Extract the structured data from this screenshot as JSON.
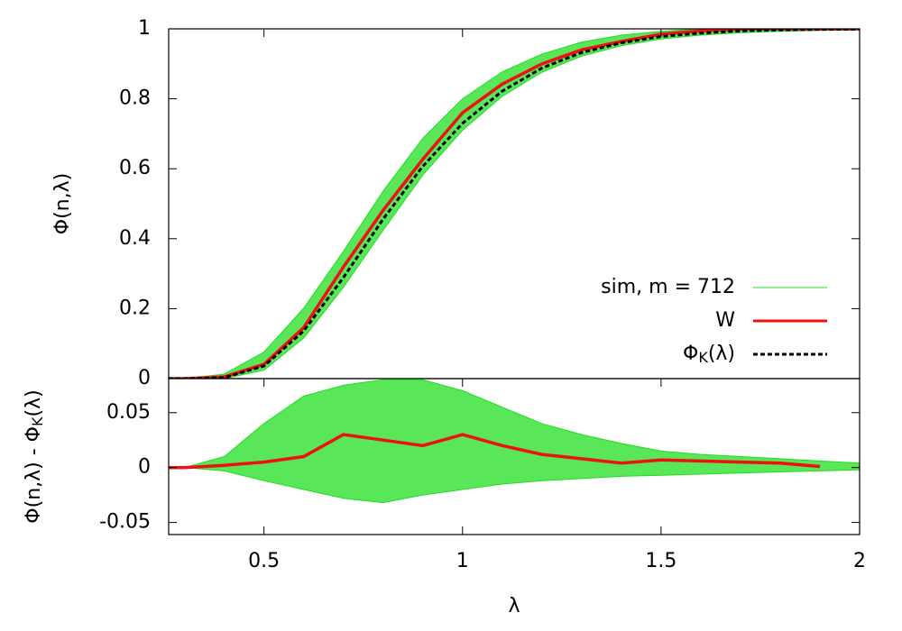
{
  "chart_data": [
    {
      "type": "line",
      "ylabel": "Φ(n,λ)",
      "x": [
        0.26,
        0.3,
        0.4,
        0.5,
        0.6,
        0.7,
        0.8,
        0.9,
        1.0,
        1.1,
        1.2,
        1.3,
        1.4,
        1.5,
        1.6,
        1.7,
        1.8,
        1.9,
        2.0
      ],
      "xlim": [
        0.26,
        2
      ],
      "ylim": [
        0,
        1
      ],
      "yticks": [
        0,
        0.2,
        0.4,
        0.6,
        0.8,
        1
      ],
      "legend": "lower right",
      "series": [
        {
          "name": "sim, m = 712",
          "color": "#22dd22",
          "lower": [
            0,
            0,
            0,
            0.024,
            0.116,
            0.261,
            0.424,
            0.582,
            0.71,
            0.807,
            0.876,
            0.922,
            0.952,
            0.971,
            0.982,
            0.989,
            0.993,
            0.9955,
            0.997
          ],
          "upper": [
            0,
            0,
            0.013,
            0.076,
            0.201,
            0.364,
            0.536,
            0.687,
            0.8,
            0.877,
            0.928,
            0.962,
            0.982,
            0.993,
            1,
            1,
            1,
            1,
            1
          ]
        },
        {
          "name": "W",
          "color": "#ee1111",
          "values": [
            0,
            0,
            0.005,
            0.041,
            0.146,
            0.319,
            0.481,
            0.627,
            0.76,
            0.842,
            0.9,
            0.94,
            0.964,
            0.985,
            0.994,
            0.999,
            1,
            0.9995,
            1
          ]
        },
        {
          "name": [
            "Φ",
            "K",
            "(λ)"
          ],
          "color": "#000000",
          "dash": true,
          "values": [
            0,
            0,
            0.0028,
            0.036,
            0.136,
            0.289,
            0.456,
            0.607,
            0.73,
            0.822,
            0.888,
            0.932,
            0.96,
            0.978,
            0.988,
            0.994,
            0.997,
            0.9985,
            0.9993
          ]
        }
      ]
    },
    {
      "type": "line",
      "xlabel": "λ",
      "ylabel": [
        "Φ(n,λ) - Φ",
        "K",
        "(λ)"
      ],
      "x": [
        0.26,
        0.3,
        0.4,
        0.5,
        0.6,
        0.7,
        0.8,
        0.9,
        1.0,
        1.1,
        1.2,
        1.3,
        1.4,
        1.5,
        1.6,
        1.7,
        1.8,
        1.9,
        2.0
      ],
      "xlim": [
        0.26,
        2
      ],
      "xticks": [
        0.5,
        1,
        1.5,
        2
      ],
      "ylim": [
        -0.061,
        0.081
      ],
      "yticks": [
        -0.05,
        0,
        0.05
      ],
      "series": [
        {
          "color": "#22dd22",
          "lower": [
            0,
            0,
            -0.003,
            -0.012,
            -0.02,
            -0.028,
            -0.032,
            -0.025,
            -0.02,
            -0.015,
            -0.012,
            -0.01,
            -0.008,
            -0.007,
            -0.006,
            -0.005,
            -0.004,
            -0.003,
            -0.002
          ],
          "upper": [
            0,
            0,
            0.01,
            0.04,
            0.065,
            0.075,
            0.08,
            0.08,
            0.07,
            0.055,
            0.04,
            0.03,
            0.022,
            0.015,
            0.012,
            0.01,
            0.008,
            0.006,
            0.004
          ]
        },
        {
          "color": "#ee1111",
          "values": [
            0,
            0,
            0.002,
            0.005,
            0.01,
            0.03,
            0.025,
            0.02,
            0.03,
            0.02,
            0.012,
            0.008,
            0.004,
            0.007,
            0.006,
            0.005,
            0.004,
            0.001,
            null
          ]
        }
      ]
    }
  ]
}
